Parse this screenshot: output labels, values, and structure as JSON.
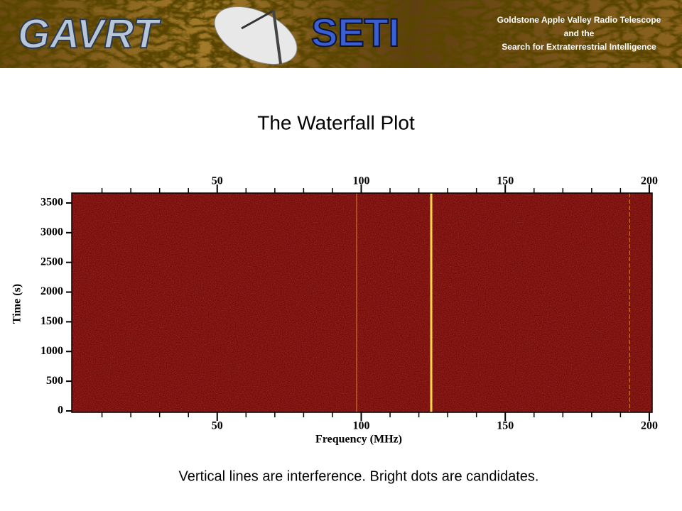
{
  "header": {
    "logo_left": "GAVRT",
    "logo_right": "SETI",
    "lines": [
      "Goldstone Apple Valley Radio Telescope",
      "and the",
      "Search for Extraterrestrial Intelligence"
    ]
  },
  "chart_data": {
    "type": "waterfall",
    "title": "The Waterfall Plot",
    "xlabel": "Frequency  (MHz)",
    "ylabel": "Time  (s)",
    "xlim": [
      -0.5,
      201
    ],
    "xticks": [
      50,
      100,
      150,
      200
    ],
    "xminorticks": [
      10,
      20,
      30,
      40,
      60,
      70,
      80,
      90,
      110,
      120,
      130,
      140,
      160,
      170,
      180,
      190
    ],
    "ylim": [
      -24,
      3667
    ],
    "yticks": [
      0,
      500,
      1000,
      1500,
      2000,
      2500,
      3000,
      3500
    ],
    "background_color": "#6e0a08",
    "signals": [
      {
        "x": 98.4,
        "color": "#e8903a"
      },
      {
        "x": 124.3,
        "color": "#ffd84a"
      },
      {
        "x": 193.2,
        "color": "#e8903a"
      }
    ]
  },
  "caption": "Vertical lines are interference.  Bright dots are candidates."
}
